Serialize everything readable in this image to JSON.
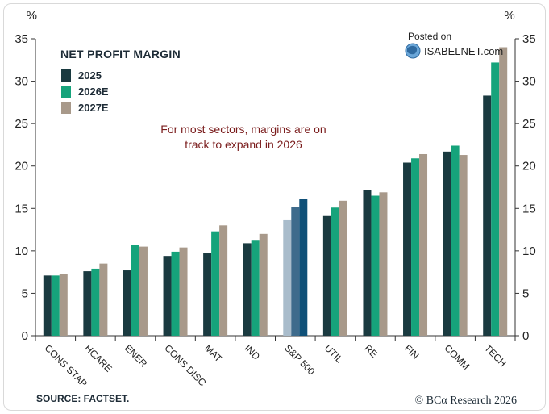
{
  "chart_data": {
    "type": "bar",
    "title": "NET PROFIT MARGIN",
    "y_unit_left": "%",
    "y_unit_right": "%",
    "ylim": [
      0,
      35
    ],
    "yticks": [
      0,
      5,
      10,
      15,
      20,
      25,
      30,
      35
    ],
    "categories": [
      "CONS STAP",
      "HCARE",
      "ENER",
      "CONS DISC",
      "MAT",
      "IND",
      "S&P 500",
      "UTIL",
      "RE",
      "FIN",
      "COMM",
      "TECH"
    ],
    "highlight_category": "S&P 500",
    "series": [
      {
        "name": "2025",
        "color": "#1a3a40",
        "highlight_color": "#a9bccb",
        "values": [
          7.1,
          7.6,
          7.7,
          9.4,
          9.7,
          10.9,
          13.7,
          14.1,
          17.2,
          20.4,
          21.7,
          28.3
        ]
      },
      {
        "name": "2026E",
        "color": "#16a37b",
        "highlight_color": "#3e6b8c",
        "values": [
          7.1,
          7.9,
          10.7,
          9.9,
          12.3,
          11.2,
          15.2,
          15.1,
          16.5,
          20.9,
          22.4,
          32.2
        ]
      },
      {
        "name": "2027E",
        "color": "#a8998a",
        "highlight_color": "#0f5078",
        "values": [
          7.3,
          8.5,
          10.5,
          10.4,
          13.0,
          12.0,
          16.1,
          15.9,
          16.9,
          21.4,
          21.3,
          34.0
        ]
      }
    ],
    "annotation_lines": [
      "For most sectors, margins are on",
      "track to expand in 2026"
    ],
    "grid": false,
    "legend_position": "top-left"
  },
  "footer": {
    "source": "SOURCE: FACTSET.",
    "credit": "© BCα Research 2026"
  },
  "watermark": {
    "line1": "Posted on",
    "line2": "ISABELNET.com"
  },
  "colors": {
    "text_dark": "#1d2b36",
    "annotation": "#7a1c1c"
  }
}
